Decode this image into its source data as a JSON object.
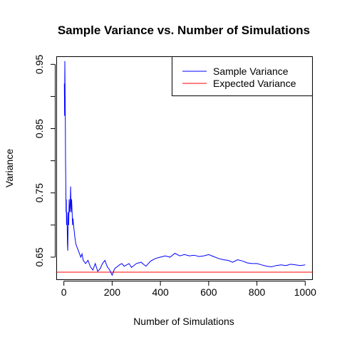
{
  "chart_data": {
    "type": "line",
    "title": "Sample Variance vs. Number of Simulations",
    "xlabel": "Number of Simulations",
    "ylabel": "Variance",
    "xlim": [
      -30,
      1030
    ],
    "ylim": [
      0.615,
      0.962
    ],
    "x_ticks": [
      0,
      200,
      400,
      600,
      800,
      1000
    ],
    "x_tick_labels": [
      "0",
      "200",
      "400",
      "600",
      "800",
      "1000"
    ],
    "y_ticks": [
      0.65,
      0.7,
      0.75,
      0.8,
      0.85,
      0.9,
      0.95
    ],
    "y_tick_labels": [
      "0.65",
      "",
      "0.75",
      "",
      "0.85",
      "",
      "0.95"
    ],
    "legend_position": "top-right",
    "grid": false,
    "series": [
      {
        "name": "Sample Variance",
        "color": "#0000ff",
        "x": [
          2,
          3,
          4,
          5,
          6,
          7,
          8,
          9,
          10,
          11,
          12,
          13,
          14,
          15,
          16,
          18,
          20,
          22,
          24,
          26,
          28,
          30,
          32,
          34,
          36,
          38,
          40,
          43,
          46,
          50,
          55,
          60,
          65,
          70,
          75,
          80,
          90,
          100,
          110,
          120,
          130,
          140,
          150,
          160,
          170,
          180,
          190,
          200,
          210,
          220,
          230,
          240,
          250,
          260,
          270,
          280,
          300,
          320,
          340,
          360,
          380,
          400,
          420,
          440,
          460,
          480,
          500,
          520,
          540,
          560,
          580,
          600,
          620,
          640,
          660,
          680,
          700,
          720,
          740,
          760,
          780,
          800,
          820,
          840,
          860,
          880,
          900,
          920,
          940,
          960,
          980,
          1000
        ],
        "y": [
          0.92,
          0.87,
          0.955,
          0.9,
          0.86,
          0.8,
          0.76,
          0.72,
          0.74,
          0.7,
          0.72,
          0.71,
          0.69,
          0.67,
          0.66,
          0.72,
          0.7,
          0.74,
          0.72,
          0.73,
          0.76,
          0.72,
          0.74,
          0.72,
          0.7,
          0.71,
          0.7,
          0.69,
          0.68,
          0.67,
          0.665,
          0.66,
          0.655,
          0.65,
          0.655,
          0.645,
          0.64,
          0.645,
          0.635,
          0.63,
          0.64,
          0.628,
          0.632,
          0.64,
          0.645,
          0.635,
          0.63,
          0.622,
          0.632,
          0.635,
          0.638,
          0.64,
          0.636,
          0.638,
          0.64,
          0.634,
          0.64,
          0.642,
          0.636,
          0.644,
          0.648,
          0.65,
          0.652,
          0.65,
          0.656,
          0.652,
          0.654,
          0.652,
          0.653,
          0.651,
          0.652,
          0.654,
          0.651,
          0.648,
          0.646,
          0.645,
          0.642,
          0.646,
          0.644,
          0.641,
          0.64,
          0.64,
          0.638,
          0.636,
          0.635,
          0.637,
          0.638,
          0.637,
          0.639,
          0.638,
          0.637,
          0.638
        ]
      },
      {
        "name": "Expected Variance",
        "color": "#ff0000",
        "x": [
          -30,
          1030
        ],
        "y": [
          0.6266,
          0.6266
        ]
      }
    ]
  }
}
